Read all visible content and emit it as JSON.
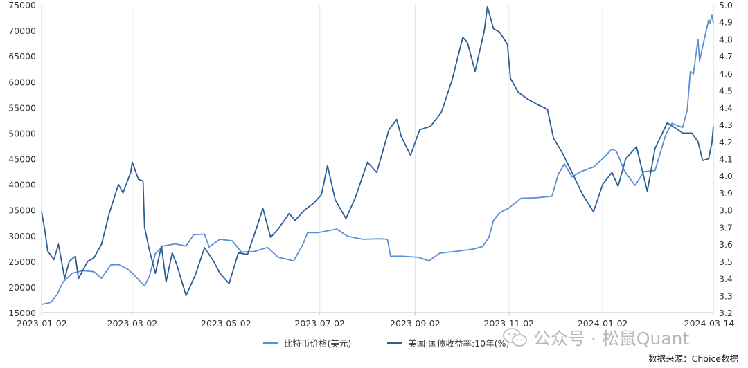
{
  "chart_data": {
    "type": "line",
    "title": "",
    "x_tick_labels": [
      "2023-01-02",
      "2023-03-02",
      "2023-05-02",
      "2023-07-02",
      "2023-09-02",
      "2023-11-02",
      "2024-01-02",
      "2024-03-14"
    ],
    "x_range": [
      "2023-01-02",
      "2024-03-14"
    ],
    "y_left": {
      "min": 15000,
      "max": 75000,
      "ticks": [
        "15000",
        "20000",
        "25000",
        "30000",
        "35000",
        "40000",
        "45000",
        "50000",
        "55000",
        "60000",
        "65000",
        "70000",
        "75000"
      ]
    },
    "y_right": {
      "min": 3.2,
      "max": 5.0,
      "ticks": [
        "3.2",
        "3.3",
        "3.4",
        "3.5",
        "3.6",
        "3.7",
        "3.8",
        "3.9",
        "4.0",
        "4.1",
        "4.2",
        "4.3",
        "4.4",
        "4.5",
        "4.6",
        "4.7",
        "4.8",
        "4.9",
        "5.0"
      ]
    },
    "series": [
      {
        "name": "比特币价格(美元)",
        "axis": "left",
        "color": "#5b8fd4",
        "points": [
          [
            "2023-01-02",
            16600
          ],
          [
            "2023-01-08",
            17000
          ],
          [
            "2023-01-12",
            18500
          ],
          [
            "2023-01-16",
            21000
          ],
          [
            "2023-01-22",
            22700
          ],
          [
            "2023-01-29",
            23200
          ],
          [
            "2023-02-05",
            23000
          ],
          [
            "2023-02-10",
            21700
          ],
          [
            "2023-02-16",
            24300
          ],
          [
            "2023-02-21",
            24400
          ],
          [
            "2023-02-27",
            23500
          ],
          [
            "2023-03-03",
            22400
          ],
          [
            "2023-03-10",
            20200
          ],
          [
            "2023-03-13",
            22000
          ],
          [
            "2023-03-17",
            26500
          ],
          [
            "2023-03-22",
            28000
          ],
          [
            "2023-03-30",
            28400
          ],
          [
            "2023-04-06",
            28000
          ],
          [
            "2023-04-11",
            30200
          ],
          [
            "2023-04-18",
            30300
          ],
          [
            "2023-04-21",
            27800
          ],
          [
            "2023-04-28",
            29300
          ],
          [
            "2023-05-06",
            29000
          ],
          [
            "2023-05-12",
            26800
          ],
          [
            "2023-05-20",
            26900
          ],
          [
            "2023-05-29",
            27700
          ],
          [
            "2023-06-05",
            25800
          ],
          [
            "2023-06-15",
            25100
          ],
          [
            "2023-06-21",
            28300
          ],
          [
            "2023-06-24",
            30600
          ],
          [
            "2023-07-01",
            30600
          ],
          [
            "2023-07-13",
            31300
          ],
          [
            "2023-07-20",
            29900
          ],
          [
            "2023-07-30",
            29300
          ],
          [
            "2023-08-10",
            29400
          ],
          [
            "2023-08-15",
            29300
          ],
          [
            "2023-08-17",
            26000
          ],
          [
            "2023-08-25",
            26000
          ],
          [
            "2023-09-04",
            25800
          ],
          [
            "2023-09-11",
            25100
          ],
          [
            "2023-09-18",
            26600
          ],
          [
            "2023-09-30",
            27000
          ],
          [
            "2023-10-10",
            27400
          ],
          [
            "2023-10-16",
            27900
          ],
          [
            "2023-10-20",
            29700
          ],
          [
            "2023-10-23",
            33000
          ],
          [
            "2023-10-27",
            34500
          ],
          [
            "2023-11-02",
            35400
          ],
          [
            "2023-11-10",
            37300
          ],
          [
            "2023-11-20",
            37400
          ],
          [
            "2023-11-30",
            37700
          ],
          [
            "2023-12-04",
            41900
          ],
          [
            "2023-12-08",
            44000
          ],
          [
            "2023-12-13",
            41500
          ],
          [
            "2023-12-19",
            42500
          ],
          [
            "2023-12-27",
            43400
          ],
          [
            "2024-01-02",
            45000
          ],
          [
            "2024-01-08",
            46900
          ],
          [
            "2024-01-11",
            46400
          ],
          [
            "2024-01-16",
            42700
          ],
          [
            "2024-01-23",
            39800
          ],
          [
            "2024-01-29",
            42500
          ],
          [
            "2024-02-05",
            42700
          ],
          [
            "2024-02-12",
            49700
          ],
          [
            "2024-02-16",
            51900
          ],
          [
            "2024-02-23",
            51100
          ],
          [
            "2024-02-26",
            54500
          ],
          [
            "2024-02-28",
            62000
          ],
          [
            "2024-03-01",
            61500
          ],
          [
            "2024-03-04",
            68300
          ],
          [
            "2024-03-05",
            64000
          ],
          [
            "2024-03-08",
            68200
          ],
          [
            "2024-03-11",
            72100
          ],
          [
            "2024-03-12",
            71400
          ],
          [
            "2024-03-13",
            73100
          ],
          [
            "2024-03-14",
            71500
          ]
        ]
      },
      {
        "name": "美国:国债收益率:10年(%)",
        "axis": "right",
        "color": "#2c5d94",
        "points": [
          [
            "2023-01-02",
            3.79
          ],
          [
            "2023-01-04",
            3.69
          ],
          [
            "2023-01-06",
            3.56
          ],
          [
            "2023-01-10",
            3.51
          ],
          [
            "2023-01-13",
            3.6
          ],
          [
            "2023-01-17",
            3.4
          ],
          [
            "2023-01-20",
            3.5
          ],
          [
            "2023-01-24",
            3.53
          ],
          [
            "2023-01-26",
            3.4
          ],
          [
            "2023-02-01",
            3.5
          ],
          [
            "2023-02-05",
            3.52
          ],
          [
            "2023-02-10",
            3.6
          ],
          [
            "2023-02-15",
            3.78
          ],
          [
            "2023-02-21",
            3.95
          ],
          [
            "2023-02-24",
            3.9
          ],
          [
            "2023-03-01",
            4.02
          ],
          [
            "2023-03-02",
            4.08
          ],
          [
            "2023-03-06",
            3.98
          ],
          [
            "2023-03-09",
            3.97
          ],
          [
            "2023-03-10",
            3.7
          ],
          [
            "2023-03-13",
            3.57
          ],
          [
            "2023-03-17",
            3.43
          ],
          [
            "2023-03-21",
            3.59
          ],
          [
            "2023-03-24",
            3.38
          ],
          [
            "2023-03-28",
            3.55
          ],
          [
            "2023-03-31",
            3.48
          ],
          [
            "2023-04-06",
            3.3
          ],
          [
            "2023-04-12",
            3.42
          ],
          [
            "2023-04-18",
            3.58
          ],
          [
            "2023-04-24",
            3.5
          ],
          [
            "2023-04-28",
            3.43
          ],
          [
            "2023-05-04",
            3.37
          ],
          [
            "2023-05-10",
            3.55
          ],
          [
            "2023-05-16",
            3.54
          ],
          [
            "2023-05-22",
            3.7
          ],
          [
            "2023-05-26",
            3.81
          ],
          [
            "2023-05-31",
            3.64
          ],
          [
            "2023-06-05",
            3.69
          ],
          [
            "2023-06-12",
            3.78
          ],
          [
            "2023-06-16",
            3.74
          ],
          [
            "2023-06-22",
            3.8
          ],
          [
            "2023-06-28",
            3.84
          ],
          [
            "2023-07-03",
            3.89
          ],
          [
            "2023-07-07",
            4.06
          ],
          [
            "2023-07-12",
            3.86
          ],
          [
            "2023-07-19",
            3.75
          ],
          [
            "2023-07-25",
            3.87
          ],
          [
            "2023-08-02",
            4.08
          ],
          [
            "2023-08-08",
            4.02
          ],
          [
            "2023-08-16",
            4.27
          ],
          [
            "2023-08-21",
            4.33
          ],
          [
            "2023-08-24",
            4.23
          ],
          [
            "2023-08-30",
            4.12
          ],
          [
            "2023-09-05",
            4.27
          ],
          [
            "2023-09-12",
            4.29
          ],
          [
            "2023-09-19",
            4.37
          ],
          [
            "2023-09-26",
            4.56
          ],
          [
            "2023-10-03",
            4.81
          ],
          [
            "2023-10-06",
            4.78
          ],
          [
            "2023-10-11",
            4.61
          ],
          [
            "2023-10-17",
            4.85
          ],
          [
            "2023-10-19",
            4.99
          ],
          [
            "2023-10-23",
            4.86
          ],
          [
            "2023-10-27",
            4.84
          ],
          [
            "2023-11-01",
            4.77
          ],
          [
            "2023-11-03",
            4.57
          ],
          [
            "2023-11-08",
            4.49
          ],
          [
            "2023-11-14",
            4.45
          ],
          [
            "2023-11-20",
            4.42
          ],
          [
            "2023-11-27",
            4.39
          ],
          [
            "2023-12-01",
            4.22
          ],
          [
            "2023-12-07",
            4.13
          ],
          [
            "2023-12-13",
            4.02
          ],
          [
            "2023-12-20",
            3.89
          ],
          [
            "2023-12-27",
            3.79
          ],
          [
            "2024-01-02",
            3.95
          ],
          [
            "2024-01-08",
            4.02
          ],
          [
            "2024-01-12",
            3.94
          ],
          [
            "2024-01-17",
            4.1
          ],
          [
            "2024-01-24",
            4.17
          ],
          [
            "2024-01-31",
            3.91
          ],
          [
            "2024-02-05",
            4.16
          ],
          [
            "2024-02-13",
            4.31
          ],
          [
            "2024-02-20",
            4.27
          ],
          [
            "2024-02-23",
            4.25
          ],
          [
            "2024-02-29",
            4.25
          ],
          [
            "2024-03-04",
            4.2
          ],
          [
            "2024-03-07",
            4.09
          ],
          [
            "2024-03-11",
            4.1
          ],
          [
            "2024-03-12",
            4.15
          ],
          [
            "2024-03-13",
            4.19
          ],
          [
            "2024-03-14",
            4.29
          ]
        ]
      }
    ]
  },
  "watermark": {
    "text": "公众号 · 松鼠Quant"
  },
  "source_note": "数据来源：Choice数据"
}
